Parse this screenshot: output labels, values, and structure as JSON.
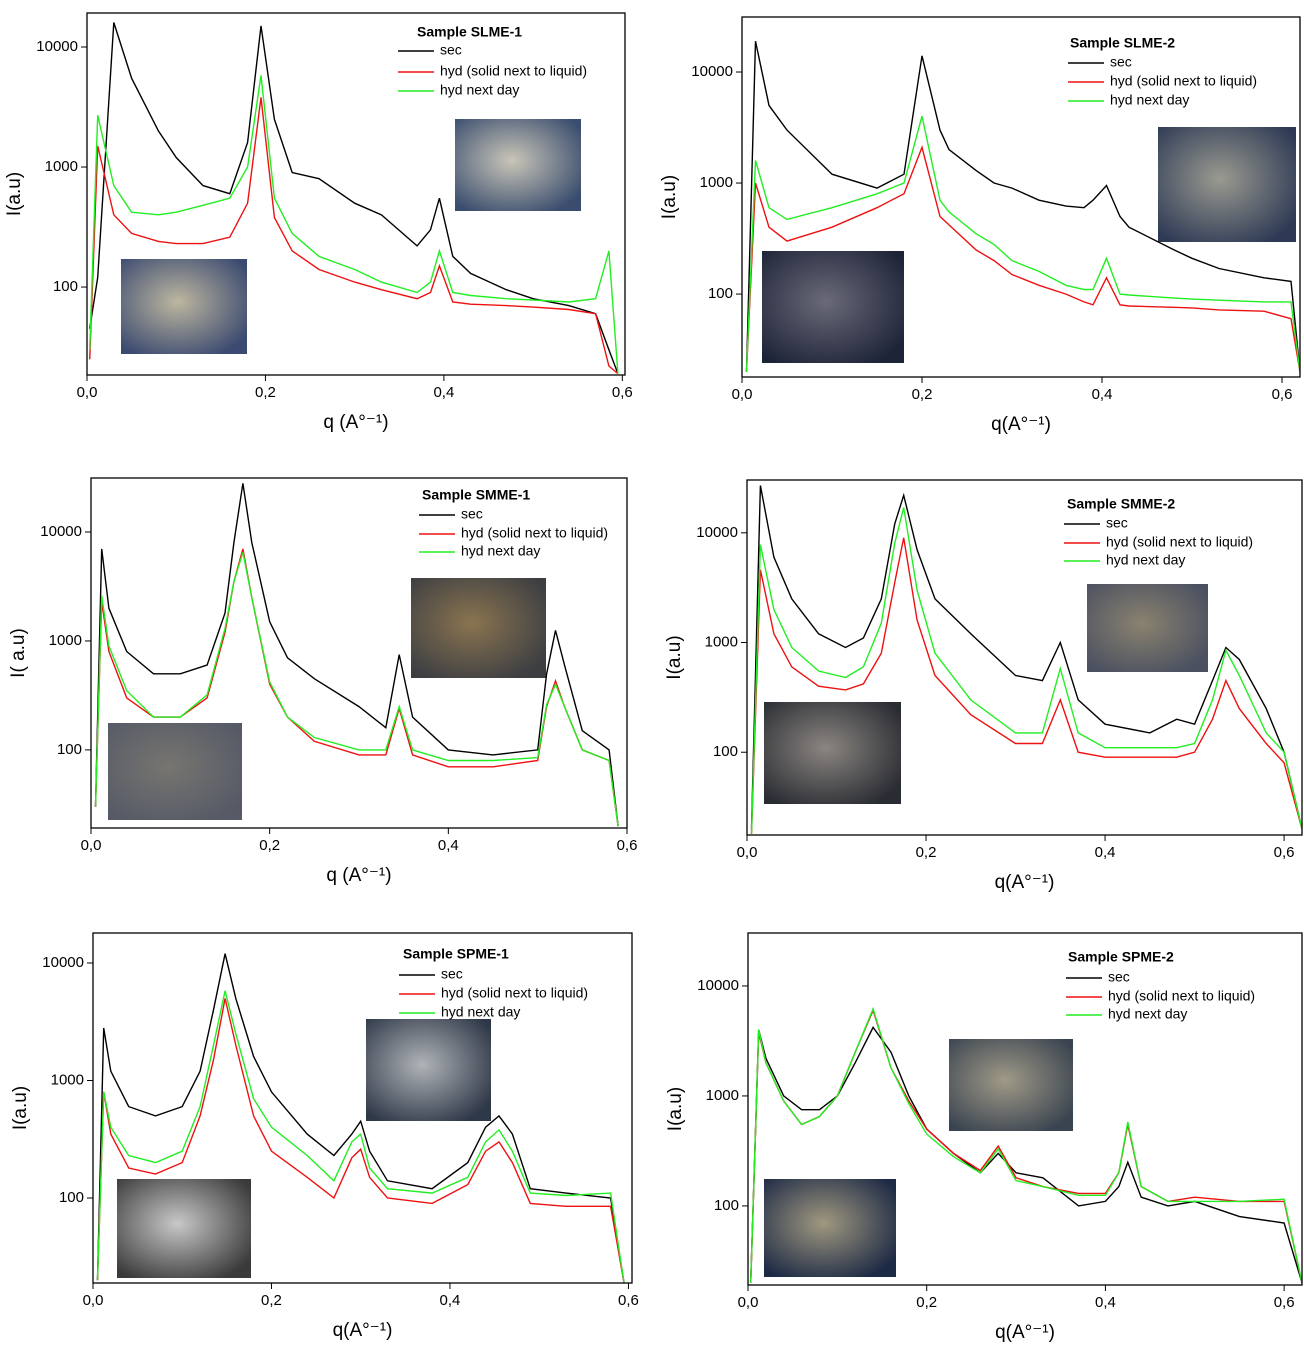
{
  "chart_data": [
    {
      "type": "line",
      "title": "Sample SLME-1",
      "x_label": "q (A°⁻¹)",
      "y_label": "I(a.u)",
      "log_scale": true,
      "xlim": [
        0,
        0.603
      ],
      "ylim": [
        18.5,
        19200
      ],
      "xticks": [
        {
          "value": 0,
          "label": "0,0"
        },
        {
          "value": 0.2,
          "label": "0,2"
        },
        {
          "value": 0.4,
          "label": "0,4"
        },
        {
          "value": 0.6,
          "label": "0,6"
        }
      ],
      "yticks": [
        100,
        1000,
        10000
      ],
      "x": [
        0.003,
        0.012,
        0.03,
        0.05,
        0.08,
        0.1,
        0.13,
        0.16,
        0.18,
        0.195,
        0.21,
        0.23,
        0.26,
        0.3,
        0.33,
        0.37,
        0.385,
        0.395,
        0.41,
        0.43,
        0.47,
        0.5,
        0.54,
        0.57,
        0.585,
        0.595
      ],
      "series": [
        {
          "name": "sec",
          "color": "#000000",
          "values": [
            45,
            120,
            16000,
            5500,
            2000,
            1200,
            700,
            600,
            1600,
            15000,
            2500,
            900,
            800,
            500,
            400,
            220,
            300,
            550,
            180,
            130,
            95,
            80,
            70,
            60,
            30,
            19
          ]
        },
        {
          "name": "hyd (solid next to liquid)",
          "color": "#ee1111",
          "values": [
            25,
            1500,
            400,
            280,
            240,
            230,
            230,
            260,
            500,
            3800,
            380,
            200,
            140,
            110,
            95,
            80,
            90,
            150,
            75,
            72,
            70,
            68,
            65,
            60,
            22,
            19
          ]
        },
        {
          "name": "hyd next day",
          "color": "#22ee22",
          "values": [
            30,
            2700,
            700,
            420,
            400,
            420,
            480,
            550,
            1000,
            5800,
            550,
            280,
            180,
            140,
            110,
            90,
            110,
            200,
            90,
            85,
            80,
            78,
            75,
            80,
            200,
            19
          ]
        }
      ]
    },
    {
      "type": "line",
      "title": "Sample SLME-2",
      "x_label": "q(A°⁻¹)",
      "y_label": "I(a.u)",
      "log_scale": true,
      "xlim": [
        0,
        0.62
      ],
      "ylim": [
        17.9,
        31300
      ],
      "xticks": [
        {
          "value": 0,
          "label": "0,0"
        },
        {
          "value": 0.2,
          "label": "0,2"
        },
        {
          "value": 0.4,
          "label": "0,4"
        },
        {
          "value": 0.6,
          "label": "0,6"
        }
      ],
      "yticks": [
        100,
        1000,
        10000
      ],
      "x": [
        0.005,
        0.015,
        0.03,
        0.05,
        0.1,
        0.15,
        0.18,
        0.2,
        0.22,
        0.23,
        0.26,
        0.28,
        0.3,
        0.33,
        0.36,
        0.38,
        0.39,
        0.405,
        0.42,
        0.43,
        0.48,
        0.5,
        0.53,
        0.58,
        0.61,
        0.62
      ],
      "series": [
        {
          "name": "sec",
          "color": "#000000",
          "values": [
            20,
            19000,
            5000,
            3000,
            1200,
            900,
            1200,
            14000,
            3000,
            2000,
            1300,
            1000,
            900,
            700,
            620,
            600,
            700,
            950,
            500,
            400,
            250,
            210,
            170,
            140,
            130,
            20
          ]
        },
        {
          "name": "hyd (solid next to liquid)",
          "color": "#ee1111",
          "values": [
            20,
            1000,
            400,
            300,
            400,
            600,
            800,
            2100,
            500,
            420,
            250,
            200,
            150,
            120,
            100,
            85,
            80,
            140,
            80,
            78,
            76,
            75,
            72,
            70,
            60,
            20
          ]
        },
        {
          "name": "hyd next day",
          "color": "#22ee22",
          "values": [
            20,
            1600,
            600,
            470,
            600,
            800,
            1000,
            4000,
            700,
            550,
            350,
            280,
            200,
            160,
            120,
            110,
            110,
            210,
            100,
            98,
            92,
            90,
            88,
            85,
            85,
            20
          ]
        }
      ]
    },
    {
      "type": "line",
      "title": "Sample SMME-1",
      "x_label": "q (A°⁻¹)",
      "y_label": "I( a.u)",
      "log_scale": true,
      "xlim": [
        0,
        0.6
      ],
      "ylim": [
        19.2,
        31300
      ],
      "xticks": [
        {
          "value": 0,
          "label": "0,0"
        },
        {
          "value": 0.2,
          "label": "0,2"
        },
        {
          "value": 0.4,
          "label": "0,4"
        },
        {
          "value": 0.6,
          "label": "0,6"
        }
      ],
      "yticks": [
        100,
        1000,
        10000
      ],
      "x": [
        0.005,
        0.012,
        0.02,
        0.04,
        0.07,
        0.1,
        0.13,
        0.15,
        0.16,
        0.17,
        0.18,
        0.2,
        0.22,
        0.25,
        0.3,
        0.33,
        0.345,
        0.36,
        0.4,
        0.45,
        0.5,
        0.51,
        0.52,
        0.53,
        0.55,
        0.58,
        0.59
      ],
      "series": [
        {
          "name": "sec",
          "color": "#000000",
          "values": [
            30,
            7000,
            2000,
            800,
            500,
            500,
            600,
            1800,
            8000,
            28000,
            8000,
            1500,
            700,
            450,
            250,
            160,
            750,
            200,
            100,
            90,
            100,
            500,
            1250,
            600,
            150,
            100,
            20
          ]
        },
        {
          "name": "hyd (solid next to liquid)",
          "color": "#ee1111",
          "values": [
            30,
            2300,
            800,
            300,
            200,
            200,
            300,
            1200,
            3500,
            7000,
            2500,
            400,
            200,
            120,
            90,
            90,
            240,
            90,
            70,
            70,
            80,
            250,
            430,
            250,
            100,
            80,
            20
          ]
        },
        {
          "name": "hyd next day",
          "color": "#22ee22",
          "values": [
            30,
            2600,
            900,
            350,
            200,
            200,
            320,
            1300,
            3500,
            6500,
            2500,
            420,
            200,
            130,
            100,
            100,
            250,
            100,
            80,
            80,
            85,
            260,
            400,
            250,
            100,
            80,
            20
          ]
        }
      ]
    },
    {
      "type": "line",
      "title": "Sample SMME-2",
      "x_label": "q(A°⁻¹)",
      "y_label": "I(a.u)",
      "log_scale": true,
      "xlim": [
        0,
        0.62
      ],
      "ylim": [
        17.6,
        30300
      ],
      "xticks": [
        {
          "value": 0,
          "label": "0,0"
        },
        {
          "value": 0.2,
          "label": "0,2"
        },
        {
          "value": 0.4,
          "label": "0,4"
        },
        {
          "value": 0.6,
          "label": "0,6"
        }
      ],
      "yticks": [
        100,
        1000,
        10000
      ],
      "x": [
        0.005,
        0.015,
        0.03,
        0.05,
        0.08,
        0.11,
        0.13,
        0.15,
        0.165,
        0.175,
        0.19,
        0.21,
        0.25,
        0.3,
        0.33,
        0.35,
        0.37,
        0.4,
        0.45,
        0.48,
        0.5,
        0.52,
        0.535,
        0.55,
        0.58,
        0.6,
        0.62
      ],
      "series": [
        {
          "name": "sec",
          "color": "#000000",
          "values": [
            20,
            27000,
            6000,
            2500,
            1200,
            900,
            1100,
            2500,
            12000,
            22000,
            7000,
            2500,
            1200,
            500,
            450,
            1000,
            300,
            180,
            150,
            200,
            180,
            450,
            900,
            700,
            250,
            100,
            20
          ]
        },
        {
          "name": "hyd (solid next to liquid)",
          "color": "#ee1111",
          "values": [
            18,
            4600,
            1200,
            600,
            400,
            370,
            420,
            800,
            3500,
            9000,
            1600,
            500,
            220,
            120,
            120,
            300,
            100,
            90,
            90,
            90,
            100,
            200,
            450,
            250,
            120,
            80,
            20
          ]
        },
        {
          "name": "hyd next day",
          "color": "#22ee22",
          "values": [
            18,
            7800,
            2000,
            900,
            550,
            480,
            600,
            1500,
            8000,
            17000,
            3000,
            800,
            300,
            150,
            150,
            580,
            150,
            110,
            110,
            110,
            120,
            300,
            850,
            500,
            150,
            100,
            20
          ]
        }
      ]
    },
    {
      "type": "line",
      "title": "Sample SPME-1",
      "x_label": "q(A°⁻¹)",
      "y_label": "I(a.u)",
      "log_scale": true,
      "xlim": [
        0,
        0.604
      ],
      "ylim": [
        18.9,
        18000
      ],
      "xticks": [
        {
          "value": 0,
          "label": "0,0"
        },
        {
          "value": 0.2,
          "label": "0,2"
        },
        {
          "value": 0.4,
          "label": "0,4"
        },
        {
          "value": 0.6,
          "label": "0,6"
        }
      ],
      "yticks": [
        100,
        1000,
        10000
      ],
      "x": [
        0.005,
        0.012,
        0.02,
        0.04,
        0.07,
        0.1,
        0.12,
        0.135,
        0.148,
        0.16,
        0.18,
        0.2,
        0.24,
        0.27,
        0.29,
        0.3,
        0.31,
        0.33,
        0.38,
        0.42,
        0.44,
        0.455,
        0.47,
        0.49,
        0.53,
        0.58,
        0.595
      ],
      "series": [
        {
          "name": "sec",
          "color": "#000000",
          "values": [
            20,
            2800,
            1200,
            600,
            500,
            600,
            1200,
            4000,
            12000,
            5000,
            1600,
            800,
            350,
            230,
            350,
            450,
            250,
            140,
            120,
            200,
            400,
            500,
            350,
            120,
            110,
            100,
            19
          ]
        },
        {
          "name": "hyd (solid next to liquid)",
          "color": "#ee1111",
          "values": [
            20,
            800,
            350,
            180,
            160,
            200,
            500,
            1500,
            5000,
            2000,
            500,
            250,
            150,
            100,
            220,
            260,
            150,
            100,
            90,
            130,
            250,
            300,
            200,
            90,
            85,
            85,
            19
          ]
        },
        {
          "name": "hyd next day",
          "color": "#22ee22",
          "values": [
            20,
            800,
            400,
            230,
            200,
            250,
            600,
            2000,
            5800,
            2500,
            700,
            400,
            230,
            140,
            300,
            350,
            180,
            120,
            110,
            150,
            300,
            380,
            250,
            110,
            105,
            110,
            19
          ]
        }
      ]
    },
    {
      "type": "line",
      "title": "Sample SPME-2",
      "x_label": "q(A°⁻¹)",
      "y_label": "I(a.u)",
      "log_scale": true,
      "xlim": [
        0,
        0.62
      ],
      "ylim": [
        19.1,
        30300
      ],
      "xticks": [
        {
          "value": 0,
          "label": "0,0"
        },
        {
          "value": 0.2,
          "label": "0,2"
        },
        {
          "value": 0.4,
          "label": "0,4"
        },
        {
          "value": 0.6,
          "label": "0,6"
        }
      ],
      "yticks": [
        100,
        1000,
        10000
      ],
      "x": [
        0.003,
        0.012,
        0.02,
        0.04,
        0.06,
        0.08,
        0.1,
        0.12,
        0.14,
        0.16,
        0.18,
        0.2,
        0.23,
        0.26,
        0.28,
        0.3,
        0.33,
        0.37,
        0.4,
        0.415,
        0.425,
        0.44,
        0.47,
        0.5,
        0.55,
        0.6,
        0.62
      ],
      "series": [
        {
          "name": "sec",
          "color": "#000000",
          "values": [
            20,
            4000,
            2200,
            1000,
            750,
            750,
            1000,
            2000,
            4200,
            2500,
            1000,
            500,
            300,
            200,
            300,
            200,
            180,
            100,
            110,
            150,
            250,
            120,
            100,
            110,
            80,
            70,
            20
          ]
        },
        {
          "name": "hyd (solid next to liquid)",
          "color": "#ee1111",
          "values": [
            20,
            3800,
            2000,
            900,
            550,
            650,
            1000,
            2500,
            6000,
            1800,
            900,
            500,
            300,
            210,
            350,
            180,
            150,
            130,
            130,
            200,
            550,
            150,
            110,
            120,
            110,
            110,
            20
          ]
        },
        {
          "name": "hyd next day",
          "color": "#22ee22",
          "values": [
            20,
            4000,
            2000,
            900,
            550,
            650,
            1000,
            2500,
            6200,
            1800,
            850,
            450,
            280,
            200,
            330,
            170,
            150,
            125,
            125,
            200,
            580,
            150,
            110,
            110,
            110,
            115,
            20
          ]
        }
      ]
    }
  ]
}
